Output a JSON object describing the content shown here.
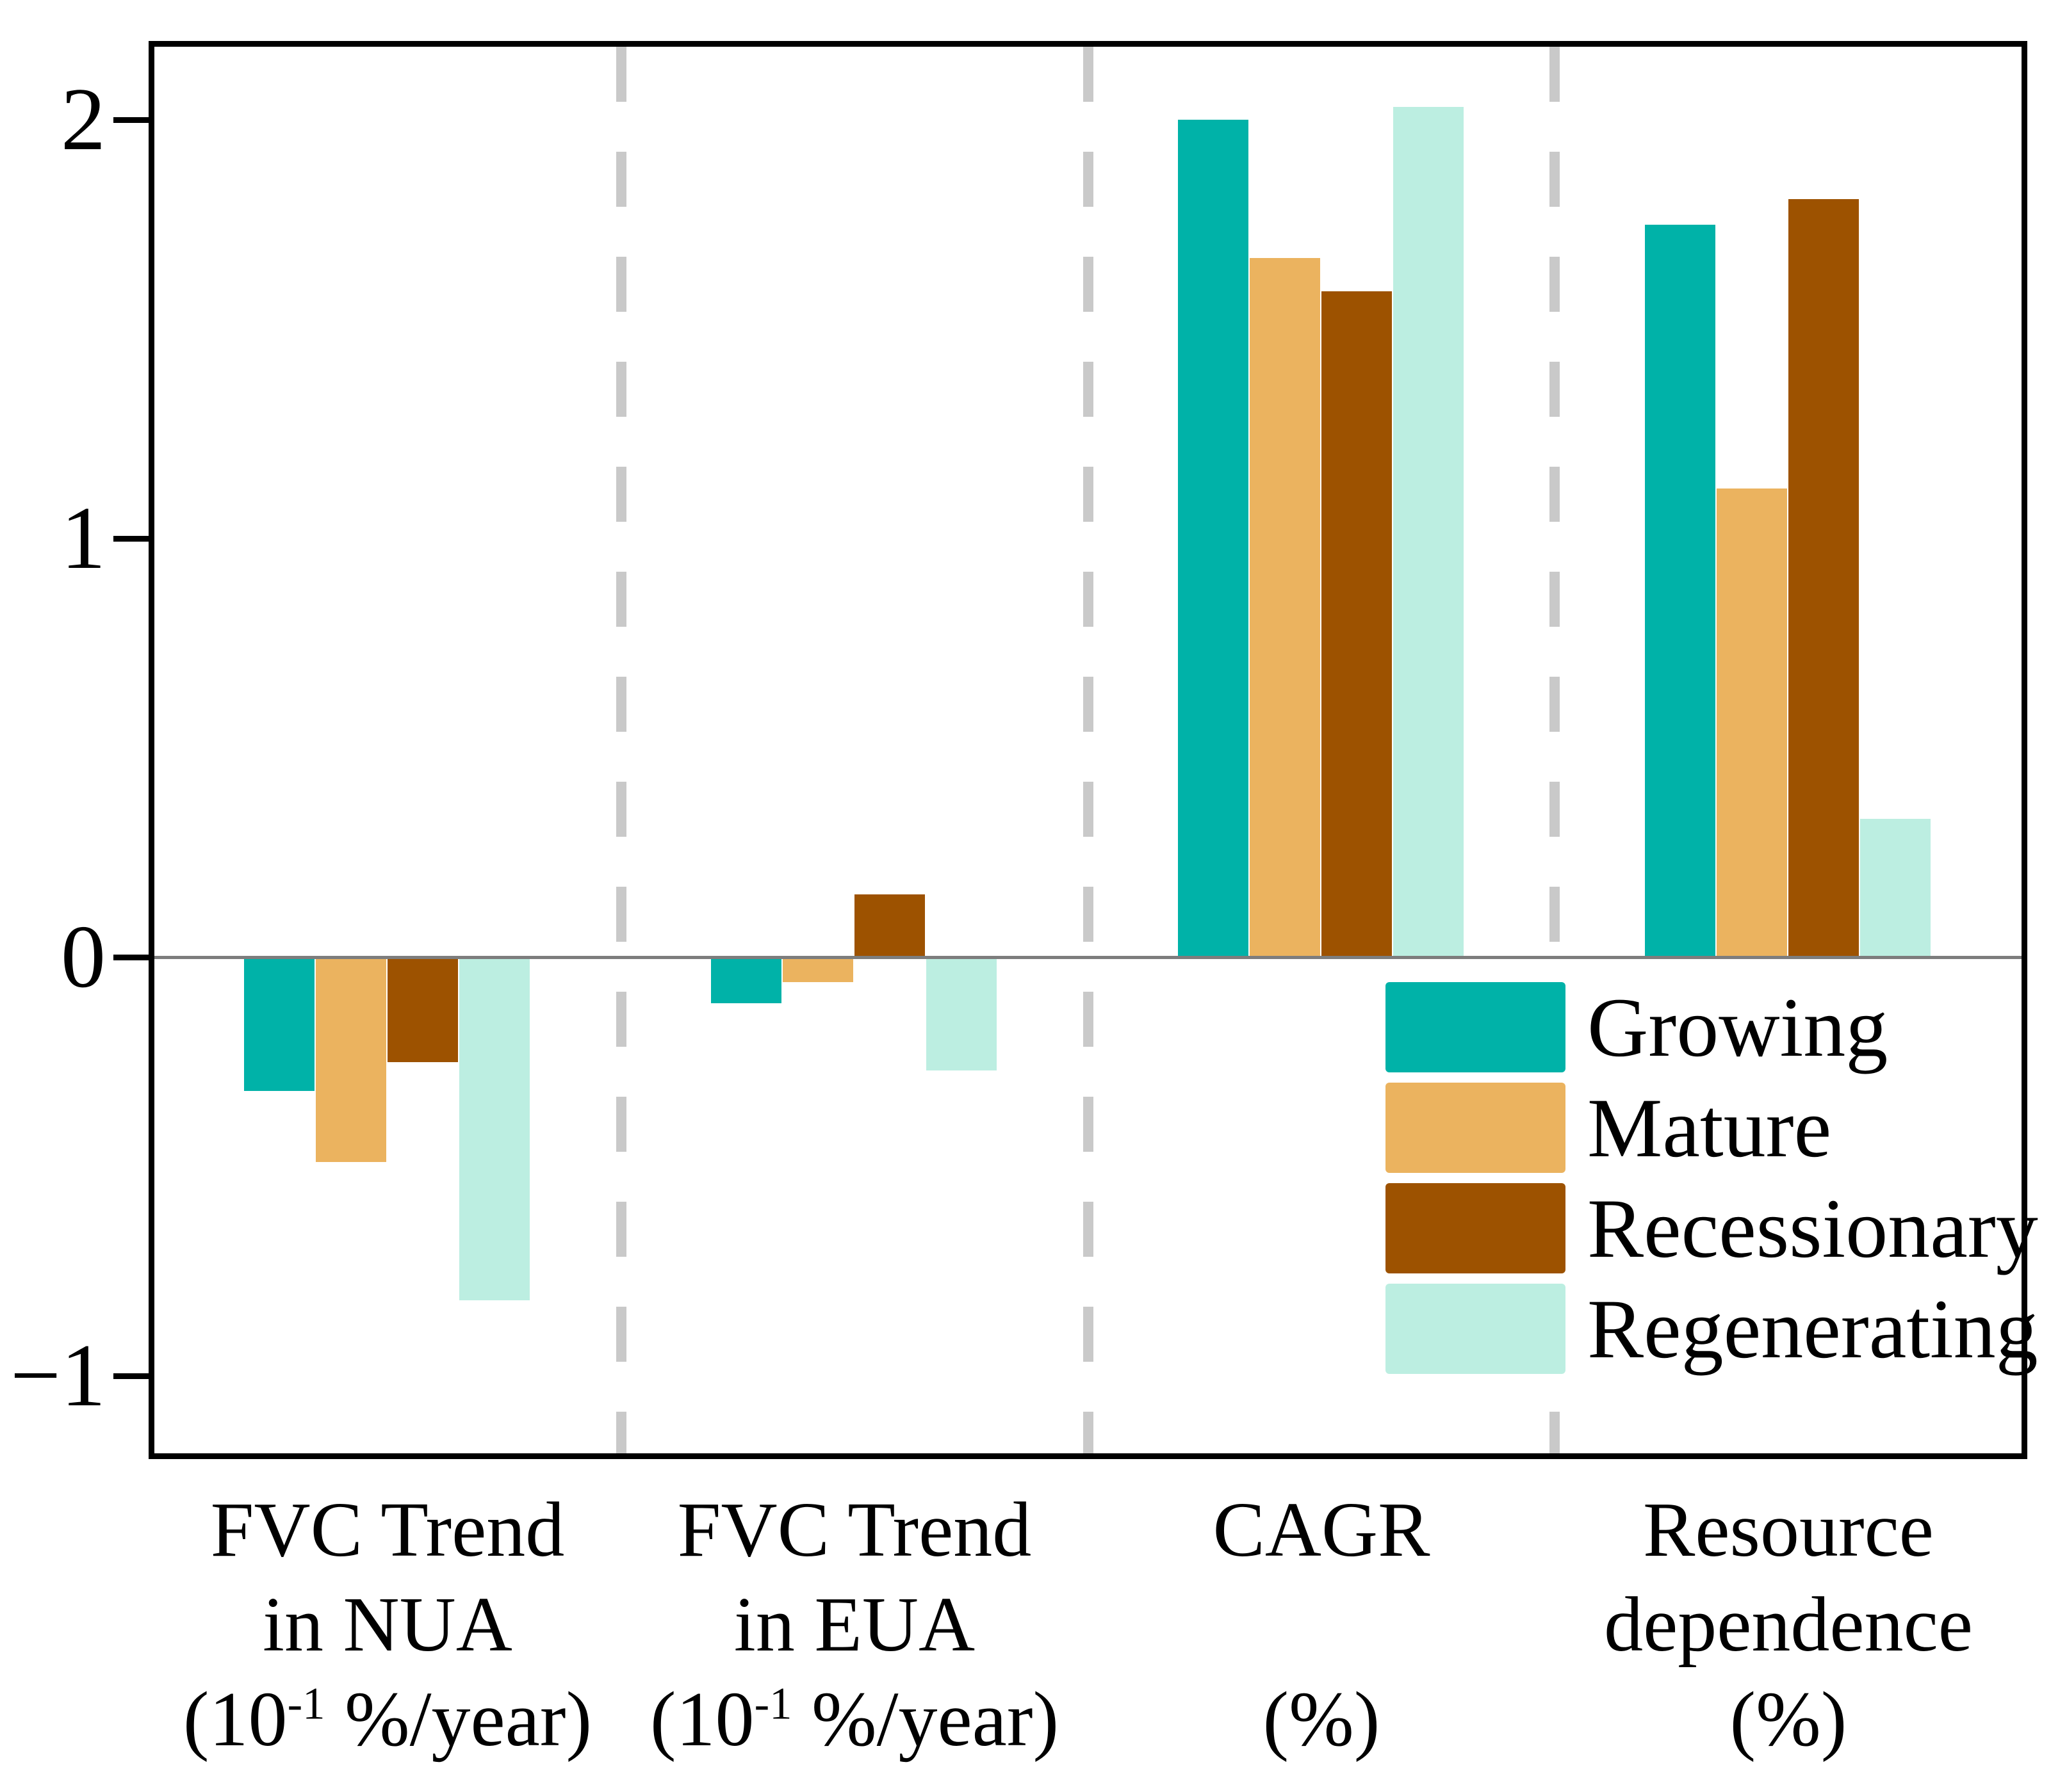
{
  "chart_data": {
    "type": "bar",
    "title": "",
    "categories": [
      "FVC Trend in NUA (10⁻¹ %/year)",
      "FVC Trend in EUA (10⁻¹ %/year)",
      "CAGR (%)",
      "Resource dependence (%)"
    ],
    "series": [
      {
        "name": "Growing",
        "color": "#00b2a8",
        "values": [
          -0.32,
          -0.11,
          2.0,
          1.75
        ]
      },
      {
        "name": "Mature",
        "color": "#ebb35f",
        "values": [
          -0.49,
          -0.06,
          1.67,
          1.12
        ]
      },
      {
        "name": "Recessionary",
        "color": "#9d5200",
        "values": [
          -0.25,
          0.15,
          1.59,
          1.81
        ]
      },
      {
        "name": "Regenerating",
        "color": "#bceee1",
        "values": [
          -0.82,
          -0.27,
          2.03,
          0.33
        ]
      }
    ],
    "xlabel": "",
    "ylabel": "",
    "ylim": [
      -1.19,
      2.18
    ],
    "grid": false,
    "legend_position": "lower-right",
    "zero_line_color": "#7d7d7d",
    "divider_color": "#c9c9c9",
    "divider_style": "dashed",
    "axis_color": "#000000"
  },
  "y_axis": {
    "tick_values": [
      2,
      1,
      0,
      -1
    ],
    "tick_labels": [
      "2",
      "1",
      "0",
      "−1"
    ]
  },
  "x_labels": [
    {
      "line1": "FVC Trend",
      "line2": "in NUA",
      "unit_pre": "(10",
      "unit_sup": "-1",
      "unit_post": " %/year)"
    },
    {
      "line1": "FVC Trend",
      "line2": "in EUA",
      "unit_pre": "(10",
      "unit_sup": "-1",
      "unit_post": " %/year)"
    },
    {
      "line1": "CAGR",
      "line2": "",
      "unit_pre": "",
      "unit_sup": "",
      "unit_post": "(%)"
    },
    {
      "line1": "Resource",
      "line2": "dependence",
      "unit_pre": "",
      "unit_sup": "",
      "unit_post": "(%)"
    }
  ],
  "legend": {
    "items": [
      {
        "label": "Growing"
      },
      {
        "label": "Mature"
      },
      {
        "label": "Recessionary"
      },
      {
        "label": "Regenerating"
      }
    ]
  }
}
